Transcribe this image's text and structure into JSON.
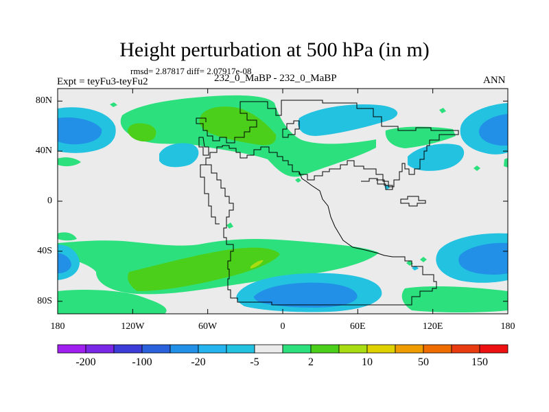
{
  "title": "Height perturbation at 500 hPa (in m)",
  "stats_line": "rmsd= 2.87817 diff= 2.07917e-08",
  "left_label": "Expt = teyFu3-teyFu2",
  "center_label": "232_0_MaBP - 232_0_MaBP",
  "right_label": "ANN",
  "lat_labels": [
    "80N",
    "40N",
    "0",
    "40S",
    "80S"
  ],
  "lon_labels": [
    "180",
    "120W",
    "60W",
    "0",
    "60E",
    "120E",
    "180"
  ],
  "colorbar": {
    "colors": [
      "#a020f0",
      "#7a28e6",
      "#3c3cd8",
      "#2a62dc",
      "#2190e6",
      "#26b4ee",
      "#22c2e0",
      "#ebebeb",
      "#2ce07e",
      "#4ccf1a",
      "#aadd11",
      "#dfd000",
      "#ee9c00",
      "#ee6c00",
      "#e83c10",
      "#ee1111"
    ],
    "labels": [
      "-200",
      "-100",
      "-20",
      "-5",
      "2",
      "10",
      "50",
      "150"
    ]
  },
  "chart_data": {
    "type": "filled-contour-map",
    "title": "Height perturbation at 500 hPa (in m)",
    "variable": "Height perturbation",
    "level": "500 hPa",
    "units": "m",
    "rmsd": 2.87817,
    "diff": 2.07917e-08,
    "experiment": "teyFu3-teyFu2",
    "case": "232_0_MaBP - 232_0_MaBP",
    "season": "ANN",
    "xlim": [
      -180,
      180
    ],
    "ylim": [
      -90,
      90
    ],
    "contour_levels": [
      -200,
      -150,
      -100,
      -50,
      -20,
      -10,
      -5,
      -2,
      2,
      5,
      10,
      20,
      50,
      100,
      150
    ],
    "features": [
      {
        "name": "negative cell NH west",
        "lon": -180,
        "lat": 57,
        "rx": 45,
        "ry": 17,
        "min_value": -20
      },
      {
        "name": "negative cell NH east",
        "lon": 180,
        "lat": 57,
        "rx": 40,
        "ry": 17,
        "min_value": -20
      },
      {
        "name": "negative cell NH pacific",
        "lon": -113,
        "lat": 38,
        "rx": 18,
        "ry": 8,
        "min_value": -5
      },
      {
        "name": "negative cell NH asia",
        "lon": 55,
        "lat": 60,
        "rx": 38,
        "ry": 11,
        "min_value": -5
      },
      {
        "name": "negative cell NH east asia",
        "lon": 120,
        "lat": 36,
        "rx": 25,
        "ry": 11,
        "min_value": -5
      },
      {
        "name": "positive band NH",
        "lon": -75,
        "lat": 55,
        "rx": 70,
        "ry": 25,
        "max_value": 10
      },
      {
        "name": "positive band SH",
        "lon": -70,
        "lat": -47,
        "rx": 75,
        "ry": 20,
        "max_value": 10
      },
      {
        "name": "negative cell SH africa",
        "lon": 30,
        "lat": -73,
        "rx": 45,
        "ry": 14,
        "min_value": -20
      },
      {
        "name": "negative cell SH east",
        "lon": 180,
        "lat": -52,
        "rx": 45,
        "ry": 18,
        "min_value": -20
      },
      {
        "name": "negative cell SH west",
        "lon": -180,
        "lat": -52,
        "rx": 45,
        "ry": 18,
        "min_value": -20
      }
    ]
  }
}
